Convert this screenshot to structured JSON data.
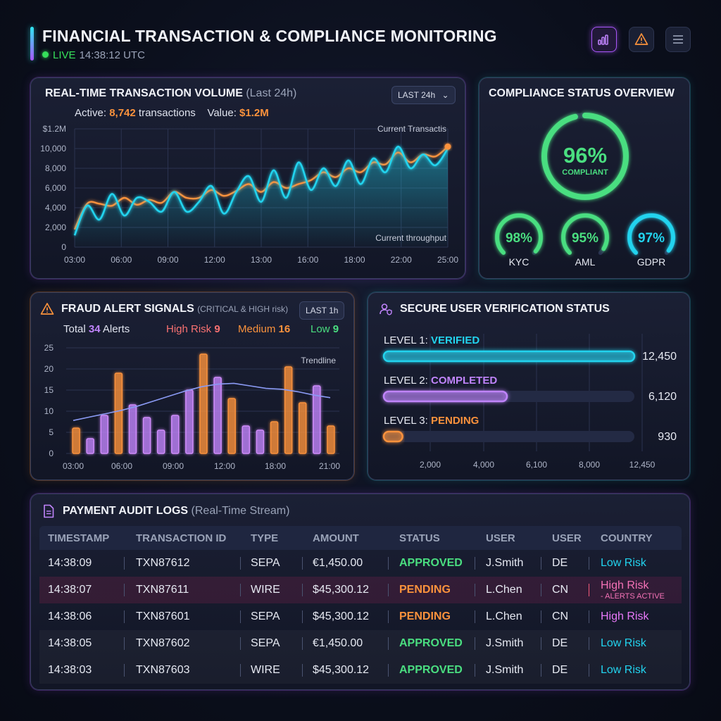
{
  "header": {
    "title": "FINANCIAL TRANSACTION & COMPLIANCE MONITORING",
    "live_label": "LIVE",
    "live_time": "14:38:12 UTC",
    "icons": [
      "chart-icon",
      "alert-icon",
      "menu-icon"
    ]
  },
  "volume": {
    "title": "REAL-TIME TRANSACTION VOLUME",
    "subtitle": "(Last 24h)",
    "range_label": "LAST 24h",
    "active_label": "Active:",
    "active_value": "8,742",
    "active_suffix": "transactions",
    "value_label": "Value:",
    "value_value": "$1.2M",
    "annotation_top": "Current Transactis",
    "annotation_bottom": "Current throughput"
  },
  "compliance": {
    "title": "COMPLIANCE STATUS OVERVIEW",
    "main_value": "96%",
    "main_label": "COMPLIANT",
    "main_fraction": 0.96,
    "gauges": [
      {
        "value": "98%",
        "label": "KYC",
        "fraction": 0.98,
        "color": "#4ade80"
      },
      {
        "value": "95%",
        "label": "AML",
        "fraction": 0.95,
        "color": "#4ade80"
      },
      {
        "value": "97%",
        "label": "GDPR",
        "fraction": 0.97,
        "color": "#22d3ee"
      }
    ]
  },
  "fraud": {
    "title": "FRAUD ALERT SIGNALS",
    "subtitle": "(CRITICAL & HIGH risk)",
    "range_label": "LAST 1h",
    "total_label": "Total",
    "total_value": "34",
    "total_suffix": "Alerts",
    "high_label": "High Risk",
    "high_value": "9",
    "medium_label": "Medium",
    "medium_value": "16",
    "low_label": "Low",
    "low_value": "9",
    "trend_label": "Trendline"
  },
  "verification": {
    "title": "SECURE USER VERIFICATION STATUS",
    "x_ticks": [
      "2,000",
      "4,000",
      "6,100",
      "8,000",
      "12,450"
    ],
    "levels": [
      {
        "prefix": "LEVEL 1:",
        "status": "VERIFIED",
        "count": "12,450",
        "value": 12450,
        "color": "#22d3ee"
      },
      {
        "prefix": "LEVEL 2:",
        "status": "COMPLETED",
        "count": "6,120",
        "value": 6120,
        "color": "#c084fc"
      },
      {
        "prefix": "LEVEL 3:",
        "status": "PENDING",
        "count": "930",
        "value": 930,
        "color": "#fb923c"
      }
    ]
  },
  "audit": {
    "title": "PAYMENT AUDIT LOGS",
    "subtitle": "(Real-Time Stream)",
    "columns": [
      "TIMESTAMP",
      "TRANSACTION ID",
      "TYPE",
      "AMOUNT",
      "STATUS",
      "USER",
      "USER",
      "COUNTRY"
    ],
    "rows": [
      {
        "time": "14:38:09",
        "id": "TXN87612",
        "type": "SEPA",
        "amount": "€1,450.00",
        "status": "APPROVED",
        "user": "J.Smith",
        "country": "DE",
        "risk": "Low Risk",
        "risk_note": ""
      },
      {
        "time": "14:38:07",
        "id": "TXN87611",
        "type": "WIRE",
        "amount": "$45,300.12",
        "status": "PENDING",
        "user": "L.Chen",
        "country": "CN",
        "risk": "High Risk",
        "risk_note": "- ALERTS ACTIVE"
      },
      {
        "time": "14:38:06",
        "id": "TXN87601",
        "type": "SEPA",
        "amount": "$45,300.12",
        "status": "PENDING",
        "user": "L.Chen",
        "country": "CN",
        "risk": "High Risk",
        "risk_note": ""
      },
      {
        "time": "14:38:05",
        "id": "TXN87602",
        "type": "SEPA",
        "amount": "€1,450.00",
        "status": "APPROVED",
        "user": "J.Smith",
        "country": "DE",
        "risk": "Low Risk",
        "risk_note": ""
      },
      {
        "time": "14:38:03",
        "id": "TXN87603",
        "type": "WIRE",
        "amount": "$45,300.12",
        "status": "APPROVED",
        "user": "J.Smith",
        "country": "DE",
        "risk": "Low Risk",
        "risk_note": ""
      }
    ]
  },
  "chart_data": [
    {
      "type": "line",
      "ylim": [
        0,
        12000
      ],
      "y_ticks": [
        "0",
        "2,000",
        "4,000",
        "6,000",
        "8,000",
        "10,000",
        "$1.2M"
      ],
      "x_ticks": [
        "03:00",
        "06:00",
        "09:00",
        "12:00",
        "13:00",
        "16:00",
        "18:00",
        "22:00",
        "25:00"
      ],
      "series": [
        {
          "color": "#22d3ee",
          "values": [
            1200,
            4200,
            2800,
            5400,
            3200,
            5000,
            4600,
            3600,
            5600,
            3600,
            4600,
            6200,
            3400,
            5600,
            7200,
            4600,
            7800,
            5000,
            8600,
            5800,
            8000,
            6200,
            8800,
            6400,
            9000,
            7600,
            10200,
            8000,
            9400,
            8300,
            10000
          ]
        },
        {
          "color": "#fb923c",
          "values": [
            1800,
            4400,
            4400,
            4200,
            5000,
            4300,
            4800,
            4500,
            5600,
            5000,
            5000,
            5800,
            5200,
            5700,
            6400,
            5600,
            6600,
            6000,
            6400,
            6800,
            7600,
            7100,
            8000,
            7600,
            8600,
            8400,
            9600,
            8600,
            9400,
            9200,
            10200
          ]
        }
      ]
    },
    {
      "type": "bar",
      "ylim": [
        0,
        25
      ],
      "y_ticks": [
        "0",
        "5",
        "10",
        "15",
        "20",
        "25"
      ],
      "x_ticks": [
        "03:00",
        "06:00",
        "09:00",
        "12:00",
        "18:00",
        "21:00"
      ],
      "values": [
        6,
        3.5,
        9,
        19,
        11.5,
        8.5,
        5.5,
        9,
        15,
        23.5,
        18,
        13,
        6.5,
        5.5,
        7.5,
        20.5,
        12,
        16,
        6.5
      ],
      "colors": [
        "orange",
        "purple",
        "purple",
        "orange",
        "purple",
        "purple",
        "purple",
        "purple",
        "purple",
        "orange",
        "purple",
        "orange",
        "purple",
        "purple",
        "orange",
        "orange",
        "orange",
        "purple",
        "orange"
      ],
      "trendline": [
        7.8,
        8.6,
        9.4,
        10.2,
        11.2,
        12.4,
        13.6,
        14.8,
        15.8,
        16.4,
        16.6,
        16.0,
        15.4,
        15.2,
        14.6,
        13.8,
        13.2
      ]
    }
  ]
}
